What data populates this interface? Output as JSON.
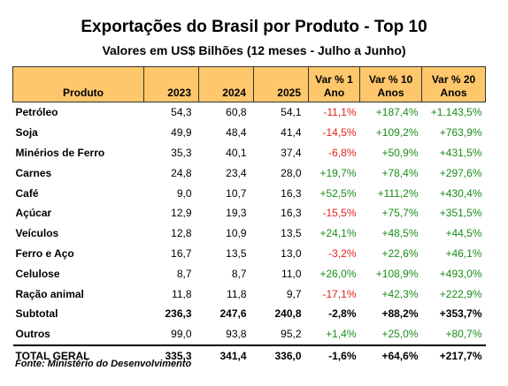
{
  "chart_data": {
    "type": "table",
    "title": "Exportações do Brasil por Produto - Top 10",
    "subtitle": "Valores em US$ Bilhões (12 meses - Julho a Junho)",
    "columns": [
      {
        "label": "Produto"
      },
      {
        "label": "2023"
      },
      {
        "label": "2024"
      },
      {
        "label": "2025"
      },
      {
        "label1": "Var % 1",
        "label2": "Ano"
      },
      {
        "label1": "Var % 10",
        "label2": "Anos"
      },
      {
        "label1": "Var % 20",
        "label2": "Anos"
      }
    ],
    "rows": [
      {
        "name": "Petróleo",
        "y2023": "54,3",
        "y2024": "60,8",
        "y2025": "54,1",
        "v1": "-11,1%",
        "v10": "+187,4%",
        "v20": "+1.143,5%"
      },
      {
        "name": "Soja",
        "y2023": "49,9",
        "y2024": "48,4",
        "y2025": "41,4",
        "v1": "-14,5%",
        "v10": "+109,2%",
        "v20": "+763,9%"
      },
      {
        "name": "Minérios de Ferro",
        "y2023": "35,3",
        "y2024": "40,1",
        "y2025": "37,4",
        "v1": "-6,8%",
        "v10": "+50,9%",
        "v20": "+431,5%"
      },
      {
        "name": "Carnes",
        "y2023": "24,8",
        "y2024": "23,4",
        "y2025": "28,0",
        "v1": "+19,7%",
        "v10": "+78,4%",
        "v20": "+297,6%"
      },
      {
        "name": "Café",
        "y2023": "9,0",
        "y2024": "10,7",
        "y2025": "16,3",
        "v1": "+52,5%",
        "v10": "+111,2%",
        "v20": "+430,4%"
      },
      {
        "name": "Açúcar",
        "y2023": "12,9",
        "y2024": "19,3",
        "y2025": "16,3",
        "v1": "-15,5%",
        "v10": "+75,7%",
        "v20": "+351,5%"
      },
      {
        "name": "Veículos",
        "y2023": "12,8",
        "y2024": "10,9",
        "y2025": "13,5",
        "v1": "+24,1%",
        "v10": "+48,5%",
        "v20": "+44,5%"
      },
      {
        "name": "Ferro e Aço",
        "y2023": "16,7",
        "y2024": "13,5",
        "y2025": "13,0",
        "v1": "-3,2%",
        "v10": "+22,6%",
        "v20": "+46,1%"
      },
      {
        "name": "Celulose",
        "y2023": "8,7",
        "y2024": "8,7",
        "y2025": "11,0",
        "v1": "+26,0%",
        "v10": "+108,9%",
        "v20": "+493,0%"
      },
      {
        "name": "Ração animal",
        "y2023": "11,8",
        "y2024": "11,8",
        "y2025": "9,7",
        "v1": "-17,1%",
        "v10": "+42,3%",
        "v20": "+222,9%"
      }
    ],
    "subtotal": {
      "name": "Subtotal",
      "y2023": "236,3",
      "y2024": "247,6",
      "y2025": "240,8",
      "v1": "-2,8%",
      "v10": "+88,2%",
      "v20": "+353,7%"
    },
    "outros": {
      "name": "Outros",
      "y2023": "99,0",
      "y2024": "93,8",
      "y2025": "95,2",
      "v1": "+1,4%",
      "v10": "+25,0%",
      "v20": "+80,7%"
    },
    "total": {
      "name": "TOTAL GERAL",
      "y2023": "335,3",
      "y2024": "341,4",
      "y2025": "336,0",
      "v1": "-1,6%",
      "v10": "+64,6%",
      "v20": "+217,7%"
    },
    "source": "Fonte: Ministério do Desenvolvimento",
    "colors": {
      "header_bg": "#fec76c",
      "negative": "#e2211c",
      "positive": "#1a8c1a"
    }
  }
}
